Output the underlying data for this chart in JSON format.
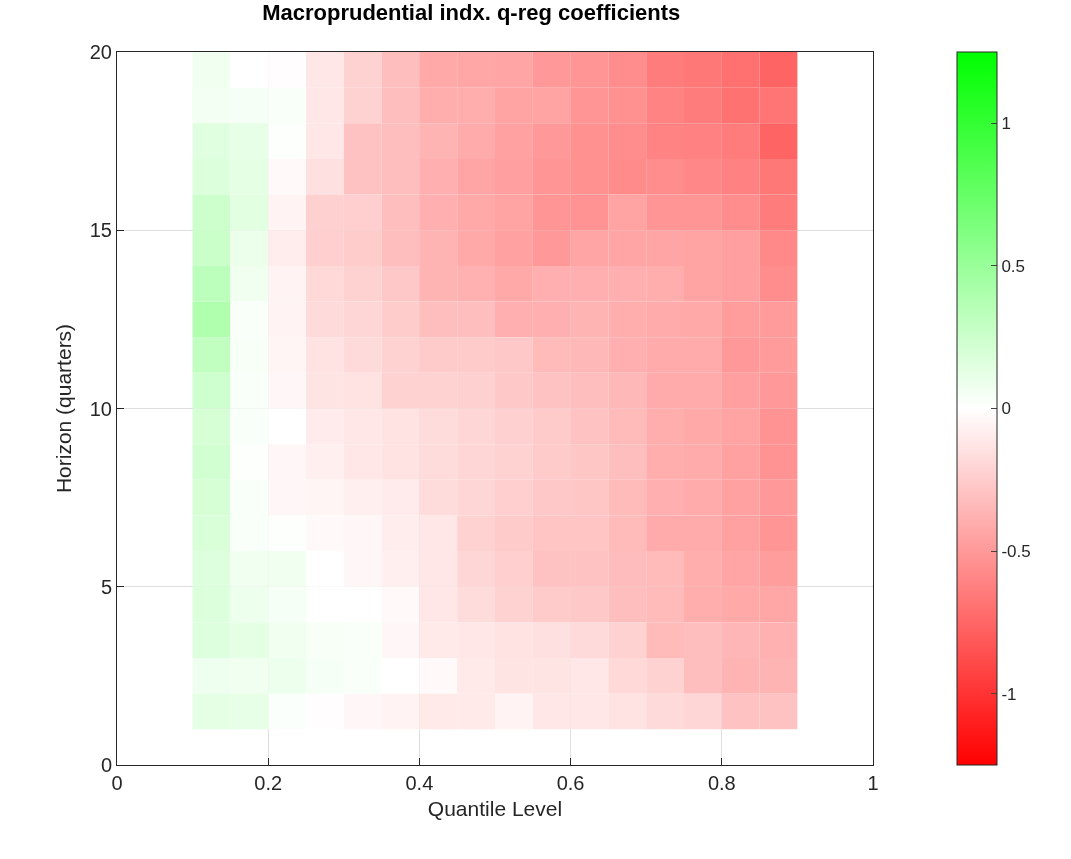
{
  "chart_data": {
    "type": "heatmap",
    "title": "Macroprudential indx. q-reg coefficients",
    "xlabel": "Quantile Level",
    "ylabel": "Horizon (quarters)",
    "x": [
      0.125,
      0.175,
      0.225,
      0.275,
      0.325,
      0.375,
      0.425,
      0.475,
      0.525,
      0.575,
      0.625,
      0.675,
      0.725,
      0.775,
      0.825,
      0.875
    ],
    "y": [
      19.5,
      18.5,
      17.5,
      16.5,
      15.5,
      14.5,
      13.5,
      12.5,
      11.5,
      10.5,
      9.5,
      8.5,
      7.5,
      6.5,
      5.5,
      4.5,
      3.5,
      2.5,
      1.5
    ],
    "cells": [
      [
        0.07,
        0.0,
        -0.01,
        -0.12,
        -0.22,
        -0.32,
        -0.42,
        -0.43,
        -0.44,
        -0.5,
        -0.52,
        -0.56,
        -0.64,
        -0.66,
        -0.7,
        -0.76
      ],
      [
        0.06,
        0.05,
        0.03,
        -0.12,
        -0.22,
        -0.32,
        -0.4,
        -0.4,
        -0.45,
        -0.45,
        -0.52,
        -0.54,
        -0.61,
        -0.64,
        -0.69,
        -0.68
      ],
      [
        0.15,
        0.12,
        0.01,
        -0.12,
        -0.3,
        -0.32,
        -0.37,
        -0.41,
        -0.46,
        -0.5,
        -0.54,
        -0.56,
        -0.61,
        -0.62,
        -0.64,
        -0.76
      ],
      [
        0.17,
        0.13,
        -0.03,
        -0.15,
        -0.3,
        -0.32,
        -0.39,
        -0.44,
        -0.47,
        -0.52,
        -0.54,
        -0.57,
        -0.56,
        -0.59,
        -0.62,
        -0.66
      ],
      [
        0.25,
        0.14,
        -0.06,
        -0.23,
        -0.24,
        -0.32,
        -0.39,
        -0.42,
        -0.45,
        -0.52,
        -0.53,
        -0.45,
        -0.52,
        -0.52,
        -0.56,
        -0.64
      ],
      [
        0.26,
        0.1,
        -0.09,
        -0.24,
        -0.25,
        -0.32,
        -0.37,
        -0.42,
        -0.46,
        -0.5,
        -0.44,
        -0.44,
        -0.44,
        -0.45,
        -0.47,
        -0.58
      ],
      [
        0.33,
        0.07,
        -0.06,
        -0.19,
        -0.22,
        -0.27,
        -0.37,
        -0.38,
        -0.42,
        -0.39,
        -0.39,
        -0.39,
        -0.4,
        -0.45,
        -0.47,
        -0.56
      ],
      [
        0.39,
        0.03,
        -0.06,
        -0.18,
        -0.2,
        -0.25,
        -0.32,
        -0.32,
        -0.39,
        -0.39,
        -0.37,
        -0.4,
        -0.41,
        -0.42,
        -0.48,
        -0.49
      ],
      [
        0.31,
        0.04,
        -0.05,
        -0.14,
        -0.18,
        -0.22,
        -0.26,
        -0.26,
        -0.27,
        -0.34,
        -0.35,
        -0.39,
        -0.41,
        -0.41,
        -0.5,
        -0.49
      ],
      [
        0.24,
        0.03,
        -0.04,
        -0.13,
        -0.14,
        -0.22,
        -0.22,
        -0.23,
        -0.27,
        -0.3,
        -0.32,
        -0.35,
        -0.41,
        -0.41,
        -0.47,
        -0.5
      ],
      [
        0.2,
        0.03,
        0.0,
        -0.1,
        -0.12,
        -0.14,
        -0.17,
        -0.2,
        -0.23,
        -0.26,
        -0.3,
        -0.34,
        -0.4,
        -0.42,
        -0.45,
        -0.53
      ],
      [
        0.22,
        0.01,
        -0.04,
        -0.08,
        -0.12,
        -0.14,
        -0.17,
        -0.2,
        -0.22,
        -0.26,
        -0.28,
        -0.32,
        -0.4,
        -0.41,
        -0.46,
        -0.53
      ],
      [
        0.2,
        0.03,
        -0.04,
        -0.05,
        -0.08,
        -0.1,
        -0.17,
        -0.2,
        -0.24,
        -0.27,
        -0.28,
        -0.34,
        -0.39,
        -0.41,
        -0.46,
        -0.5
      ],
      [
        0.19,
        0.03,
        0.01,
        -0.03,
        -0.04,
        -0.09,
        -0.12,
        -0.22,
        -0.26,
        -0.29,
        -0.29,
        -0.34,
        -0.41,
        -0.41,
        -0.46,
        -0.52
      ],
      [
        0.16,
        0.07,
        0.07,
        0.0,
        -0.04,
        -0.08,
        -0.12,
        -0.2,
        -0.24,
        -0.3,
        -0.3,
        -0.33,
        -0.34,
        -0.4,
        -0.44,
        -0.48
      ],
      [
        0.17,
        0.09,
        0.05,
        0.0,
        0.0,
        -0.03,
        -0.12,
        -0.17,
        -0.22,
        -0.26,
        -0.27,
        -0.32,
        -0.34,
        -0.4,
        -0.42,
        -0.43
      ],
      [
        0.16,
        0.13,
        0.07,
        0.04,
        0.03,
        -0.04,
        -0.11,
        -0.12,
        -0.14,
        -0.15,
        -0.18,
        -0.22,
        -0.34,
        -0.32,
        -0.36,
        -0.38
      ],
      [
        0.08,
        0.07,
        0.09,
        0.05,
        0.03,
        0.0,
        -0.03,
        -0.11,
        -0.13,
        -0.13,
        -0.12,
        -0.19,
        -0.22,
        -0.32,
        -0.37,
        -0.37
      ],
      [
        0.13,
        0.12,
        0.02,
        -0.01,
        -0.04,
        -0.06,
        -0.11,
        -0.11,
        -0.06,
        -0.12,
        -0.12,
        -0.14,
        -0.18,
        -0.2,
        -0.3,
        -0.3
      ]
    ],
    "colors": [
      "#ff0000",
      "#ffffff",
      "#00ff00"
    ],
    "clim": [
      -1.25,
      1.25
    ],
    "cticks": [
      -1,
      -0.5,
      0,
      0.5,
      1
    ],
    "xlim": [
      0,
      1
    ],
    "xticks": [
      0,
      0.2,
      0.4,
      0.6,
      0.8,
      1
    ],
    "ylim": [
      0,
      20
    ],
    "yticks": [
      0,
      5,
      10,
      15,
      20
    ],
    "grid": true
  }
}
